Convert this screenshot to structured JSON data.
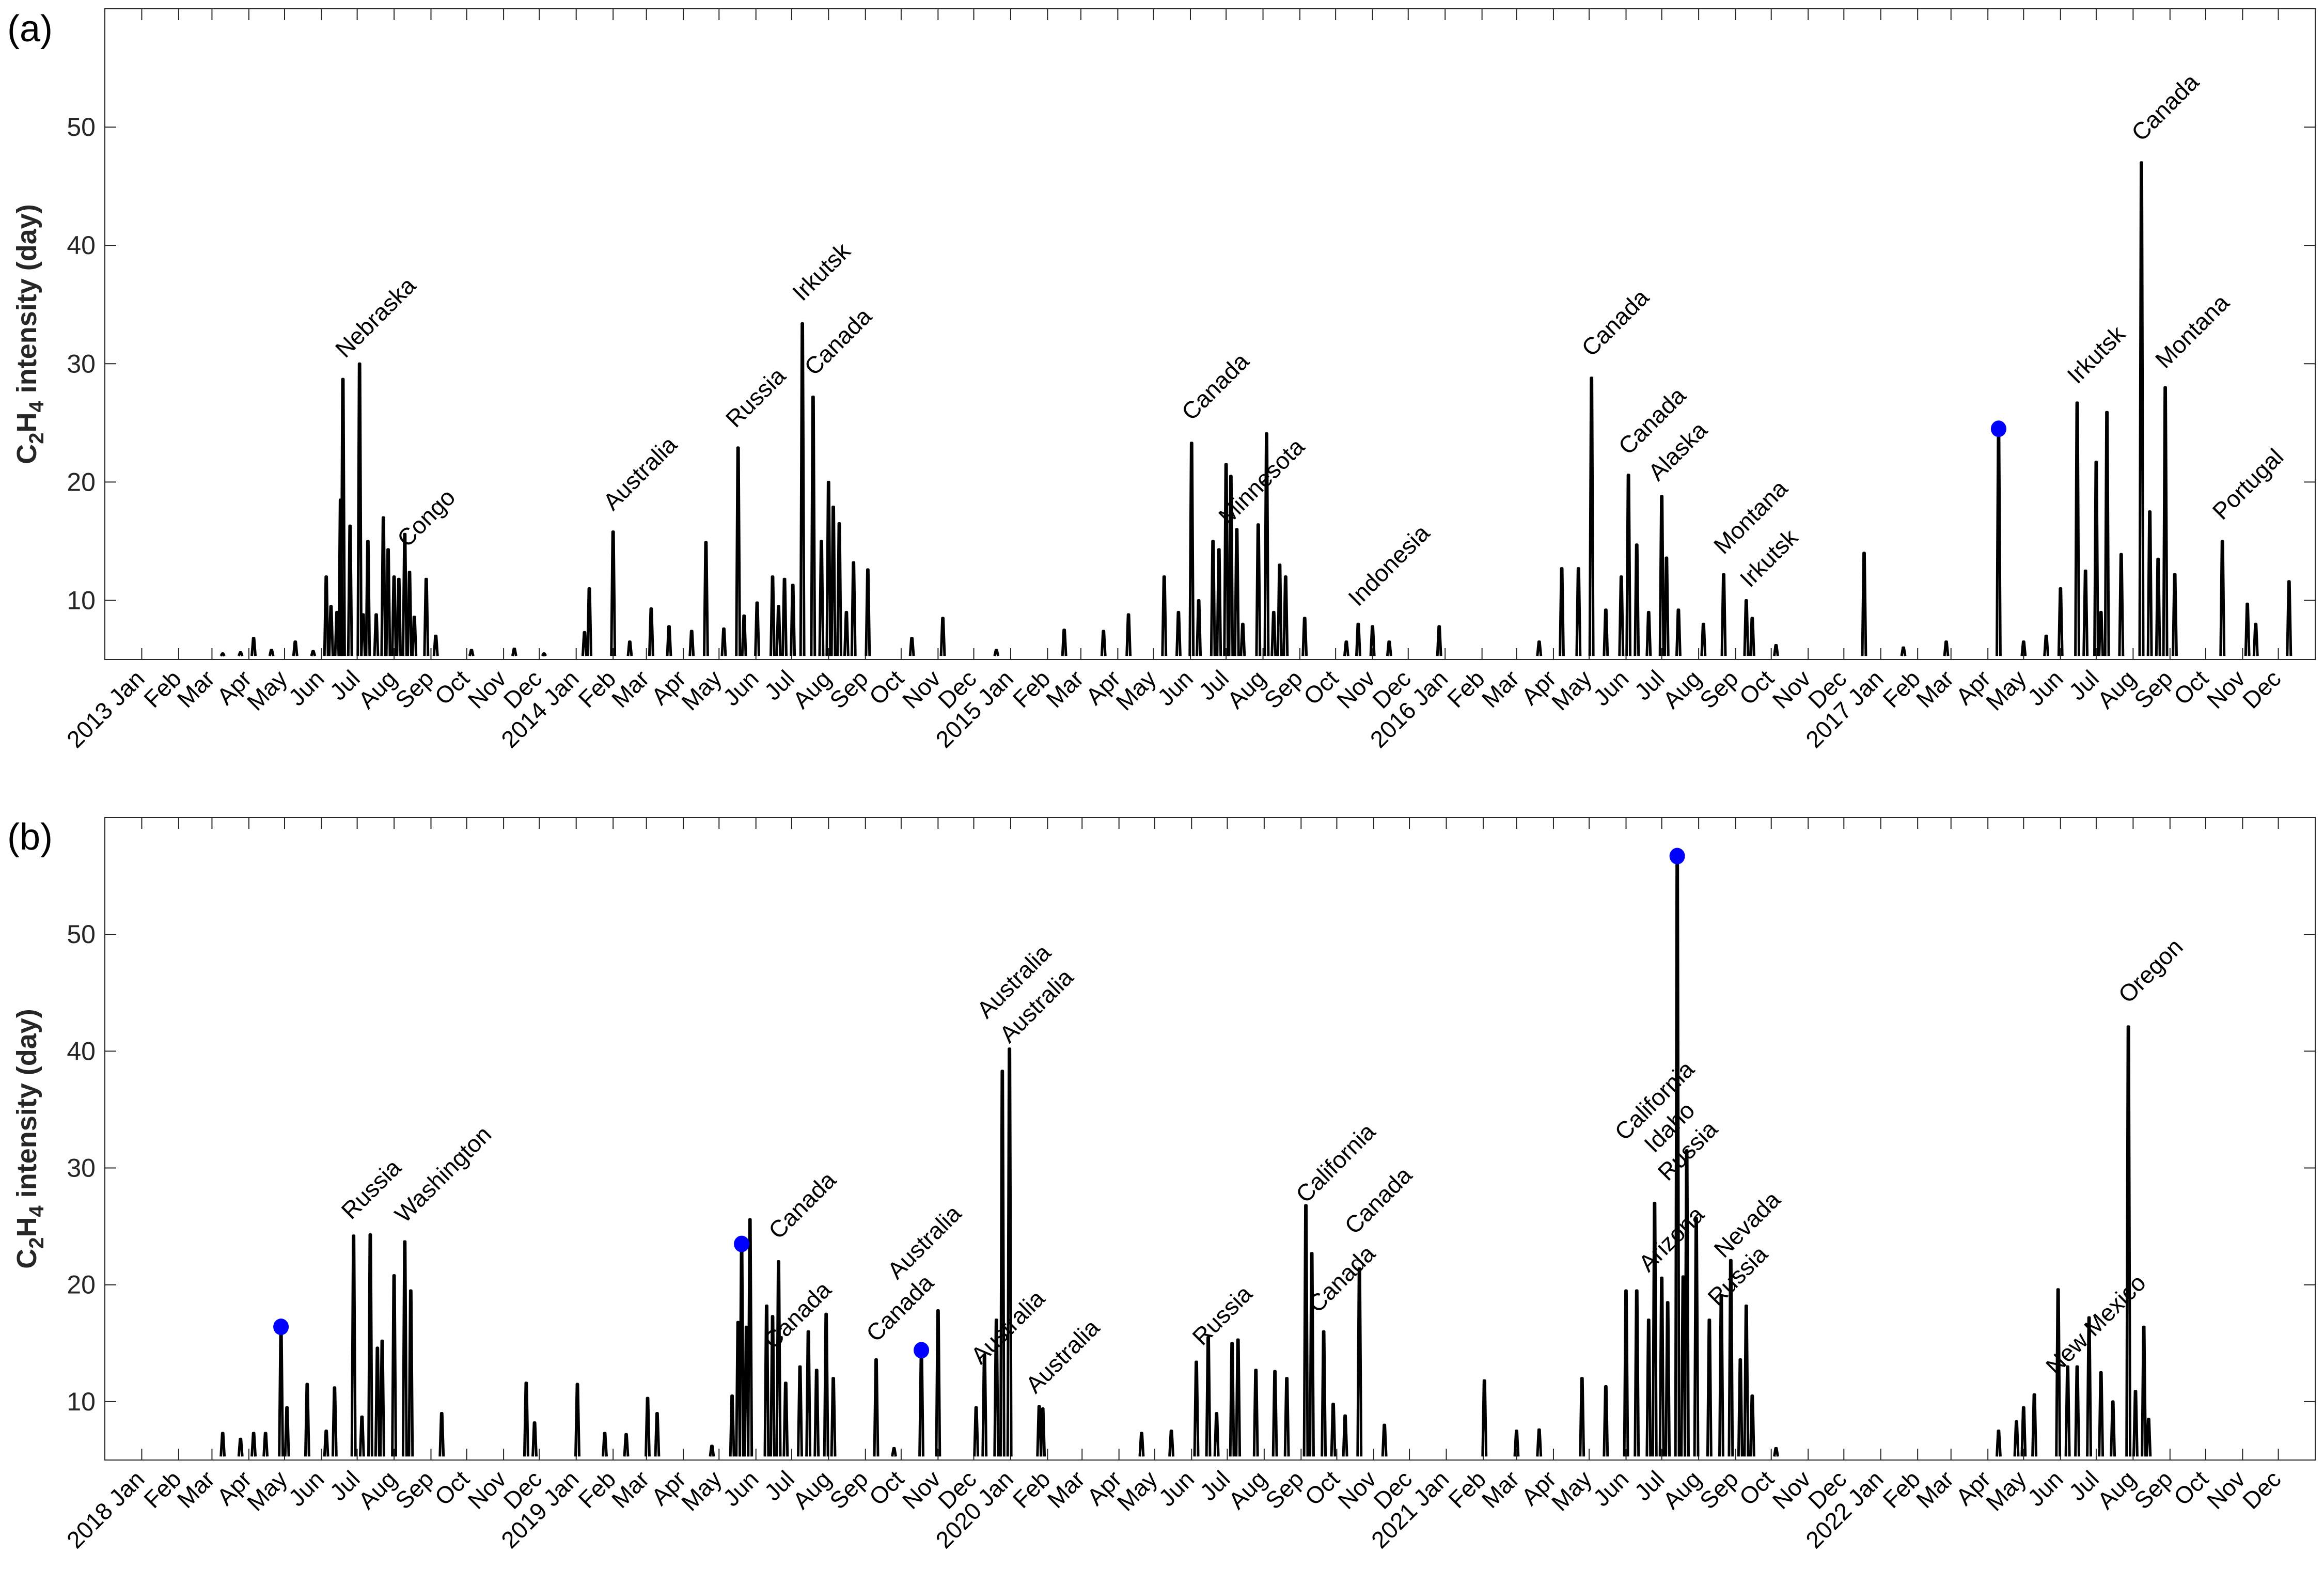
{
  "chart_data": [
    {
      "type": "line",
      "panel_label": "(a)",
      "ylabel": {
        "parts": [
          "C",
          "2",
          "H",
          "4",
          " intensity (day)"
        ]
      },
      "xlim": [
        "2012-12-01",
        "2018-01-01"
      ],
      "ylim": [
        5,
        60
      ],
      "yticks": [
        10,
        20,
        30,
        40,
        50
      ],
      "years": [
        "2013",
        "2014",
        "2015",
        "2016",
        "2017"
      ],
      "months": [
        "Jan",
        "Feb",
        "Mar",
        "Apr",
        "May",
        "Jun",
        "Jul",
        "Aug",
        "Sep",
        "Oct",
        "Nov",
        "Dec"
      ],
      "grid": false,
      "line_color": "#000000",
      "marker_color": "#0000ff",
      "series": [
        [
          "2013-03-10",
          5.5
        ],
        [
          "2013-03-25",
          5.6
        ],
        [
          "2013-04-05",
          6.8
        ],
        [
          "2013-04-20",
          5.8
        ],
        [
          "2013-05-10",
          6.5
        ],
        [
          "2013-05-25",
          5.7
        ],
        [
          "2013-06-05",
          12.0
        ],
        [
          "2013-06-09",
          9.5
        ],
        [
          "2013-06-14",
          9.0
        ],
        [
          "2013-06-17",
          18.5
        ],
        [
          "2013-06-19",
          28.7
        ],
        [
          "2013-06-25",
          16.3
        ],
        [
          "2013-07-03",
          30.0
        ],
        [
          "2013-07-06",
          8.8
        ],
        [
          "2013-07-10",
          15.0
        ],
        [
          "2013-07-17",
          8.8
        ],
        [
          "2013-07-23",
          17.0
        ],
        [
          "2013-07-27",
          14.3
        ],
        [
          "2013-08-01",
          12.0
        ],
        [
          "2013-08-05",
          11.8
        ],
        [
          "2013-08-10",
          15.6
        ],
        [
          "2013-08-14",
          12.4
        ],
        [
          "2013-08-18",
          8.6
        ],
        [
          "2013-08-28",
          11.8
        ],
        [
          "2013-09-05",
          7.0
        ],
        [
          "2013-10-05",
          5.8
        ],
        [
          "2013-11-10",
          5.9
        ],
        [
          "2013-12-05",
          5.5
        ],
        [
          "2014-01-08",
          7.3
        ],
        [
          "2014-01-12",
          11.0
        ],
        [
          "2014-02-01",
          15.8
        ],
        [
          "2014-02-15",
          6.5
        ],
        [
          "2014-03-05",
          9.3
        ],
        [
          "2014-03-20",
          7.8
        ],
        [
          "2014-04-08",
          7.4
        ],
        [
          "2014-04-20",
          14.9
        ],
        [
          "2014-05-05",
          7.6
        ],
        [
          "2014-05-17",
          22.9
        ],
        [
          "2014-05-22",
          8.7
        ],
        [
          "2014-06-02",
          9.8
        ],
        [
          "2014-06-15",
          12.0
        ],
        [
          "2014-06-20",
          9.5
        ],
        [
          "2014-06-25",
          11.8
        ],
        [
          "2014-07-02",
          11.3
        ],
        [
          "2014-07-10",
          33.4
        ],
        [
          "2014-07-19",
          27.2
        ],
        [
          "2014-07-26",
          15.0
        ],
        [
          "2014-08-01",
          20.0
        ],
        [
          "2014-08-05",
          17.9
        ],
        [
          "2014-08-10",
          16.5
        ],
        [
          "2014-08-16",
          9.0
        ],
        [
          "2014-08-22",
          13.2
        ],
        [
          "2014-09-03",
          12.6
        ],
        [
          "2014-10-10",
          6.8
        ],
        [
          "2014-11-05",
          8.5
        ],
        [
          "2014-12-20",
          5.8
        ],
        [
          "2015-02-15",
          7.5
        ],
        [
          "2015-03-20",
          7.4
        ],
        [
          "2015-04-10",
          8.8
        ],
        [
          "2015-05-10",
          12.0
        ],
        [
          "2015-05-22",
          9.0
        ],
        [
          "2015-06-02",
          23.3
        ],
        [
          "2015-06-08",
          10.0
        ],
        [
          "2015-06-20",
          15.0
        ],
        [
          "2015-06-25",
          14.3
        ],
        [
          "2015-07-01",
          21.5
        ],
        [
          "2015-07-05",
          20.5
        ],
        [
          "2015-07-10",
          16.0
        ],
        [
          "2015-07-15",
          8.0
        ],
        [
          "2015-07-28",
          16.4
        ],
        [
          "2015-08-04",
          24.1
        ],
        [
          "2015-08-10",
          9.0
        ],
        [
          "2015-08-15",
          13.0
        ],
        [
          "2015-08-20",
          12.0
        ],
        [
          "2015-09-05",
          8.5
        ],
        [
          "2015-10-10",
          6.5
        ],
        [
          "2015-10-20",
          8.0
        ],
        [
          "2015-11-01",
          7.8
        ],
        [
          "2015-11-15",
          6.5
        ],
        [
          "2015-12-27",
          7.8
        ],
        [
          "2016-03-20",
          6.5
        ],
        [
          "2016-04-08",
          12.7
        ],
        [
          "2016-04-22",
          12.7
        ],
        [
          "2016-05-03",
          28.8
        ],
        [
          "2016-05-15",
          9.2
        ],
        [
          "2016-05-28",
          12.0
        ],
        [
          "2016-06-03",
          20.6
        ],
        [
          "2016-06-10",
          14.7
        ],
        [
          "2016-06-20",
          9.0
        ],
        [
          "2016-07-01",
          18.8
        ],
        [
          "2016-07-05",
          13.6
        ],
        [
          "2016-07-15",
          9.2
        ],
        [
          "2016-08-05",
          8.0
        ],
        [
          "2016-08-22",
          12.2
        ],
        [
          "2016-09-10",
          10.0
        ],
        [
          "2016-09-15",
          8.5
        ],
        [
          "2016-10-05",
          6.2
        ],
        [
          "2016-12-18",
          14.0
        ],
        [
          "2017-01-20",
          6.0
        ],
        [
          "2017-02-25",
          6.5
        ],
        [
          "2017-04-10",
          24.5
        ],
        [
          "2017-05-01",
          6.5
        ],
        [
          "2017-05-20",
          7.0
        ],
        [
          "2017-06-01",
          11.0
        ],
        [
          "2017-06-15",
          26.7
        ],
        [
          "2017-06-22",
          12.5
        ],
        [
          "2017-07-01",
          21.7
        ],
        [
          "2017-07-05",
          9.0
        ],
        [
          "2017-07-10",
          25.9
        ],
        [
          "2017-07-22",
          13.9
        ],
        [
          "2017-08-08",
          47.0
        ],
        [
          "2017-08-15",
          17.5
        ],
        [
          "2017-08-22",
          13.5
        ],
        [
          "2017-08-28",
          28.0
        ],
        [
          "2017-09-05",
          12.2
        ],
        [
          "2017-10-15",
          15.0
        ],
        [
          "2017-11-05",
          9.7
        ],
        [
          "2017-11-12",
          8.0
        ],
        [
          "2017-12-10",
          11.6
        ]
      ],
      "markers": [
        [
          "2017-04-10",
          24.5
        ]
      ],
      "annotations": [
        {
          "text": "Nebraska",
          "date": "2013-06-21",
          "y": 30.4
        },
        {
          "text": "Congo",
          "date": "2013-08-12",
          "y": 14.4
        },
        {
          "text": "Australia",
          "date": "2014-02-01",
          "y": 17.5
        },
        {
          "text": "Russia",
          "date": "2014-05-15",
          "y": 24.5
        },
        {
          "text": "Irkutsk",
          "date": "2014-07-10",
          "y": 35.2
        },
        {
          "text": "Canada",
          "date": "2014-07-20",
          "y": 28.9
        },
        {
          "text": "Canada",
          "date": "2015-06-02",
          "y": 25.1
        },
        {
          "text": "Minnesota",
          "date": "2015-07-03",
          "y": 16.3
        },
        {
          "text": "Indonesia",
          "date": "2015-10-20",
          "y": 9.4
        },
        {
          "text": "Canada",
          "date": "2016-05-03",
          "y": 30.5
        },
        {
          "text": "Canada",
          "date": "2016-06-03",
          "y": 22.2
        },
        {
          "text": "Alaska",
          "date": "2016-06-28",
          "y": 20.0
        },
        {
          "text": "Montana",
          "date": "2016-08-22",
          "y": 13.8
        },
        {
          "text": "Irkutsk",
          "date": "2016-09-13",
          "y": 11.0
        },
        {
          "text": "Irkutsk",
          "date": "2017-06-15",
          "y": 28.2
        },
        {
          "text": "Canada",
          "date": "2017-08-08",
          "y": 48.7
        },
        {
          "text": "Montana",
          "date": "2017-08-28",
          "y": 29.5
        },
        {
          "text": "Portugal",
          "date": "2017-10-15",
          "y": 16.7
        }
      ]
    },
    {
      "type": "line",
      "panel_label": "(b)",
      "ylabel": {
        "parts": [
          "C",
          "2",
          "H",
          "4",
          " intensity (day)"
        ]
      },
      "xlim": [
        "2017-12-01",
        "2023-01-01"
      ],
      "ylim": [
        5,
        60
      ],
      "yticks": [
        10,
        20,
        30,
        40,
        50
      ],
      "years": [
        "2018",
        "2019",
        "2020",
        "2021",
        "2022"
      ],
      "months": [
        "Jan",
        "Feb",
        "Mar",
        "Apr",
        "May",
        "Jun",
        "Jul",
        "Aug",
        "Sep",
        "Oct",
        "Nov",
        "Dec"
      ],
      "grid": false,
      "line_color": "#000000",
      "marker_color": "#0000ff",
      "series": [
        [
          "2018-03-10",
          7.3
        ],
        [
          "2018-03-25",
          6.8
        ],
        [
          "2018-04-05",
          7.3
        ],
        [
          "2018-04-15",
          7.3
        ],
        [
          "2018-04-28",
          16.4
        ],
        [
          "2018-05-03",
          9.5
        ],
        [
          "2018-05-20",
          11.5
        ],
        [
          "2018-06-05",
          7.5
        ],
        [
          "2018-06-12",
          11.2
        ],
        [
          "2018-06-28",
          24.2
        ],
        [
          "2018-07-05",
          8.7
        ],
        [
          "2018-07-12",
          24.3
        ],
        [
          "2018-07-18",
          14.6
        ],
        [
          "2018-07-22",
          15.2
        ],
        [
          "2018-08-01",
          20.8
        ],
        [
          "2018-08-10",
          23.7
        ],
        [
          "2018-08-15",
          19.5
        ],
        [
          "2018-09-10",
          9.0
        ],
        [
          "2018-11-20",
          11.6
        ],
        [
          "2018-11-27",
          8.2
        ],
        [
          "2019-01-02",
          11.5
        ],
        [
          "2019-01-25",
          7.3
        ],
        [
          "2019-02-12",
          7.2
        ],
        [
          "2019-03-02",
          10.3
        ],
        [
          "2019-03-10",
          9.0
        ],
        [
          "2019-04-25",
          6.2
        ],
        [
          "2019-05-12",
          10.5
        ],
        [
          "2019-05-17",
          16.8
        ],
        [
          "2019-05-20",
          23.5
        ],
        [
          "2019-05-24",
          16.4
        ],
        [
          "2019-05-27",
          25.6
        ],
        [
          "2019-06-10",
          18.2
        ],
        [
          "2019-06-15",
          17.3
        ],
        [
          "2019-06-20",
          22.0
        ],
        [
          "2019-06-26",
          11.6
        ],
        [
          "2019-07-08",
          13.0
        ],
        [
          "2019-07-15",
          16.0
        ],
        [
          "2019-07-22",
          12.7
        ],
        [
          "2019-07-30",
          17.5
        ],
        [
          "2019-08-05",
          12.0
        ],
        [
          "2019-09-10",
          13.6
        ],
        [
          "2019-09-25",
          6.0
        ],
        [
          "2019-10-18",
          14.4
        ],
        [
          "2019-11-01",
          17.8
        ],
        [
          "2019-12-03",
          9.5
        ],
        [
          "2019-12-10",
          14.0
        ],
        [
          "2019-12-20",
          17.0
        ],
        [
          "2019-12-25",
          38.3
        ],
        [
          "2019-12-31",
          40.2
        ],
        [
          "2020-01-25",
          9.6
        ],
        [
          "2020-01-28",
          9.4
        ],
        [
          "2020-04-20",
          7.3
        ],
        [
          "2020-05-15",
          7.5
        ],
        [
          "2020-06-05",
          13.4
        ],
        [
          "2020-06-15",
          15.5
        ],
        [
          "2020-06-22",
          9.0
        ],
        [
          "2020-07-05",
          15.0
        ],
        [
          "2020-07-10",
          15.3
        ],
        [
          "2020-07-25",
          12.7
        ],
        [
          "2020-08-10",
          12.6
        ],
        [
          "2020-08-20",
          12.0
        ],
        [
          "2020-09-05",
          26.8
        ],
        [
          "2020-09-10",
          22.7
        ],
        [
          "2020-09-20",
          16.0
        ],
        [
          "2020-09-28",
          9.8
        ],
        [
          "2020-10-08",
          8.8
        ],
        [
          "2020-10-20",
          21.4
        ],
        [
          "2020-11-10",
          8.0
        ],
        [
          "2021-02-02",
          11.8
        ],
        [
          "2021-03-01",
          7.5
        ],
        [
          "2021-03-20",
          7.6
        ],
        [
          "2021-04-25",
          12.0
        ],
        [
          "2021-05-15",
          11.3
        ],
        [
          "2021-06-01",
          19.5
        ],
        [
          "2021-06-10",
          19.5
        ],
        [
          "2021-06-20",
          17.0
        ],
        [
          "2021-06-25",
          27.0
        ],
        [
          "2021-07-01",
          20.6
        ],
        [
          "2021-07-06",
          18.5
        ],
        [
          "2021-07-14",
          56.7
        ],
        [
          "2021-07-19",
          20.7
        ],
        [
          "2021-07-22",
          31.5
        ],
        [
          "2021-07-30",
          25.7
        ],
        [
          "2021-08-10",
          17.0
        ],
        [
          "2021-08-20",
          19.0
        ],
        [
          "2021-08-28",
          22.1
        ],
        [
          "2021-09-05",
          13.6
        ],
        [
          "2021-09-10",
          18.2
        ],
        [
          "2021-09-15",
          10.5
        ],
        [
          "2021-10-05",
          6.0
        ],
        [
          "2022-04-10",
          7.5
        ],
        [
          "2022-04-25",
          8.3
        ],
        [
          "2022-05-01",
          9.5
        ],
        [
          "2022-05-10",
          10.6
        ],
        [
          "2022-05-30",
          19.6
        ],
        [
          "2022-06-07",
          13.0
        ],
        [
          "2022-06-15",
          13.0
        ],
        [
          "2022-06-25",
          17.2
        ],
        [
          "2022-07-05",
          12.5
        ],
        [
          "2022-07-15",
          10.0
        ],
        [
          "2022-07-28",
          42.1
        ],
        [
          "2022-08-03",
          10.9
        ],
        [
          "2022-08-10",
          16.4
        ],
        [
          "2022-08-14",
          8.5
        ]
      ],
      "markers": [
        [
          "2018-04-28",
          16.4
        ],
        [
          "2019-05-20",
          23.5
        ],
        [
          "2019-10-18",
          14.4
        ],
        [
          "2021-07-14",
          56.7
        ]
      ],
      "annotations": [
        {
          "text": "Russia",
          "date": "2018-06-26",
          "y": 25.5
        },
        {
          "text": "Washington",
          "date": "2018-08-10",
          "y": 25.2
        },
        {
          "text": "Canada",
          "date": "2019-06-20",
          "y": 23.8
        },
        {
          "text": "Canada",
          "date": "2019-06-16",
          "y": 14.4
        },
        {
          "text": "Canada",
          "date": "2019-09-10",
          "y": 15.0
        },
        {
          "text": "Australia",
          "date": "2019-10-26",
          "y": 17.5
        },
        {
          "text": "Australia",
          "date": "2019-12-12",
          "y": 42.7
        },
        {
          "text": "Australia",
          "date": "2019-12-31",
          "y": 40.6
        },
        {
          "text": "Australia",
          "date": "2019-12-07",
          "y": 13.1
        },
        {
          "text": "Australia",
          "date": "2020-01-22",
          "y": 10.6
        },
        {
          "text": "Russia",
          "date": "2020-06-10",
          "y": 14.7
        },
        {
          "text": "California",
          "date": "2020-09-05",
          "y": 26.9
        },
        {
          "text": "Canada",
          "date": "2020-09-15",
          "y": 17.5
        },
        {
          "text": "Canada",
          "date": "2020-10-20",
          "y": 23.8
        },
        {
          "text": "Arizona",
          "date": "2021-06-20",
          "y": 21.0
        },
        {
          "text": "Russia",
          "date": "2021-07-06",
          "y": 28.8
        },
        {
          "text": "Idaho",
          "date": "2021-07-25",
          "y": 28.1
        },
        {
          "text": "Russia",
          "date": "2021-08-17",
          "y": 18.1
        },
        {
          "text": "Nevada",
          "date": "2021-09-03",
          "y": 21.0
        },
        {
          "text": "California",
          "date": "2021-09-30",
          "y": 19.8
        },
        {
          "text": "New Mexico",
          "date": "2022-05-28",
          "y": 12.2
        },
        {
          "text": "Oregon",
          "date": "2022-07-28",
          "y": 44.0
        }
      ]
    }
  ]
}
